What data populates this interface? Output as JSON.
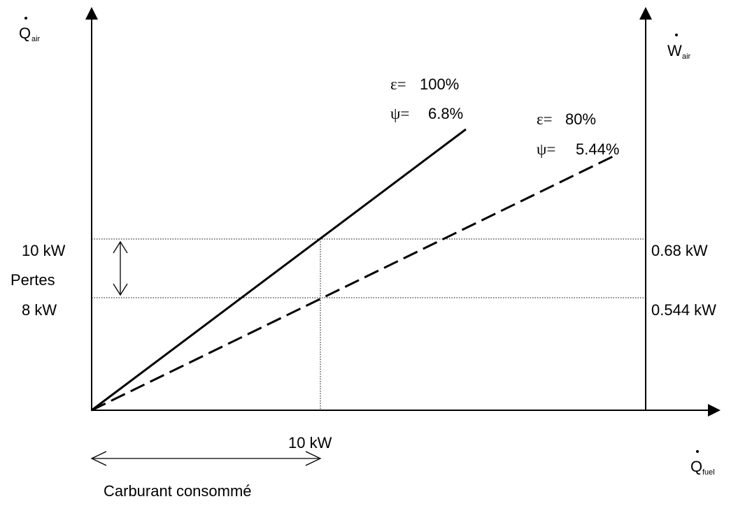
{
  "axes": {
    "left": {
      "symbol": "Q",
      "subscript": "air"
    },
    "right": {
      "symbol": "W",
      "subscript": "air"
    },
    "bottom": {
      "symbol": "Q",
      "subscript": "fuel"
    }
  },
  "lines": [
    {
      "style": "solid",
      "epsilon_label": "ε=",
      "epsilon_value": "100%",
      "psi_label": "ψ=",
      "psi_value": "6.8%"
    },
    {
      "style": "dashed",
      "epsilon_label": "ε=",
      "epsilon_value": "80%",
      "psi_label": "ψ=",
      "psi_value": "5.44%"
    }
  ],
  "left_labels": {
    "upper": "10 kW",
    "middle": "Pertes",
    "lower": "8 kW"
  },
  "right_labels": {
    "upper": "0.68 kW",
    "lower": "0.544 kW"
  },
  "bottom_labels": {
    "tick": "10 kW",
    "caption": "Carburant consommé"
  }
}
